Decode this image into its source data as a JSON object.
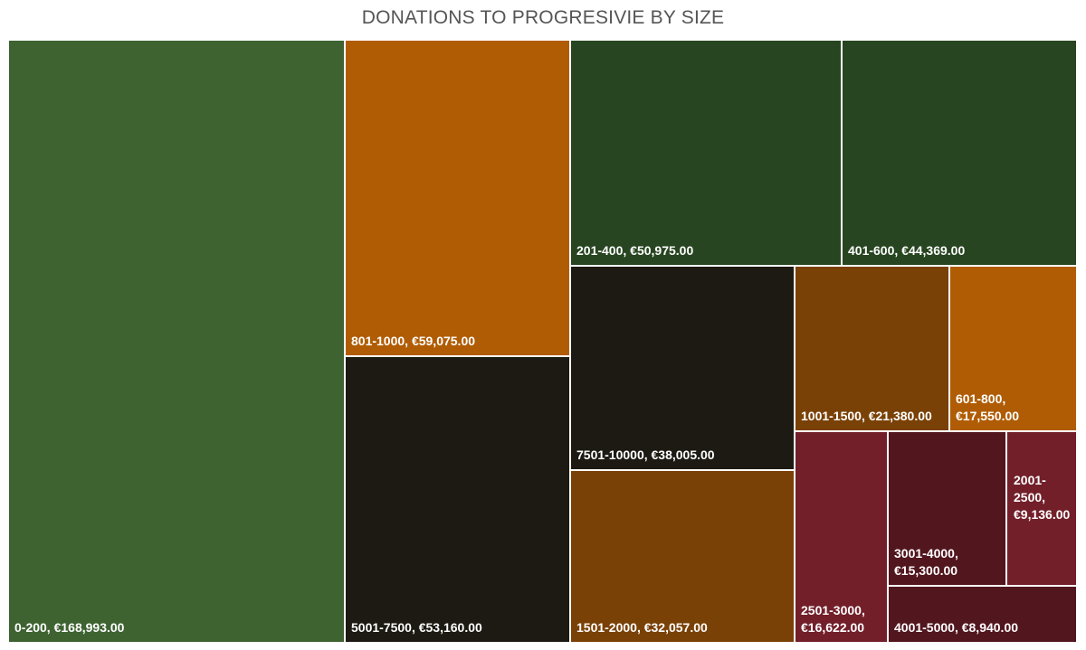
{
  "chart_data": {
    "type": "treemap",
    "title": "DONATIONS TO PROGRESIVIE BY SIZE",
    "value_prefix": "€",
    "items": [
      {
        "label": "0-200",
        "value": 168993.0,
        "value_text": "€168,993.00",
        "color": "#3e6331"
      },
      {
        "label": "801-1000",
        "value": 59075.0,
        "value_text": "€59,075.00",
        "color": "#b05c04"
      },
      {
        "label": "5001-7500",
        "value": 53160.0,
        "value_text": "€53,160.00",
        "color": "#1c1a12"
      },
      {
        "label": "201-400",
        "value": 50975.0,
        "value_text": "€50,975.00",
        "color": "#274520"
      },
      {
        "label": "401-600",
        "value": 44369.0,
        "value_text": "€44,369.00",
        "color": "#274520"
      },
      {
        "label": "7501-10000",
        "value": 38005.0,
        "value_text": "€38,005.00",
        "color": "#1c1a12"
      },
      {
        "label": "1501-2000",
        "value": 32057.0,
        "value_text": "€32,057.00",
        "color": "#7a4106"
      },
      {
        "label": "1001-1500",
        "value": 21380.0,
        "value_text": "€21,380.00",
        "color": "#7a4106"
      },
      {
        "label": "601-800",
        "value": 17550.0,
        "value_text": "€17,550.00",
        "color": "#b05c04"
      },
      {
        "label": "2501-3000",
        "value": 16622.0,
        "value_text": "€16,622.00",
        "color": "#721f2a"
      },
      {
        "label": "3001-4000",
        "value": 15300.0,
        "value_text": "€15,300.00",
        "color": "#52161e"
      },
      {
        "label": "2001-2500",
        "value": 9136.0,
        "value_text": "€9,136.00",
        "color": "#721f2a"
      },
      {
        "label": "4001-5000",
        "value": 8940.0,
        "value_text": "€8,940.00",
        "color": "#52161e"
      }
    ]
  }
}
